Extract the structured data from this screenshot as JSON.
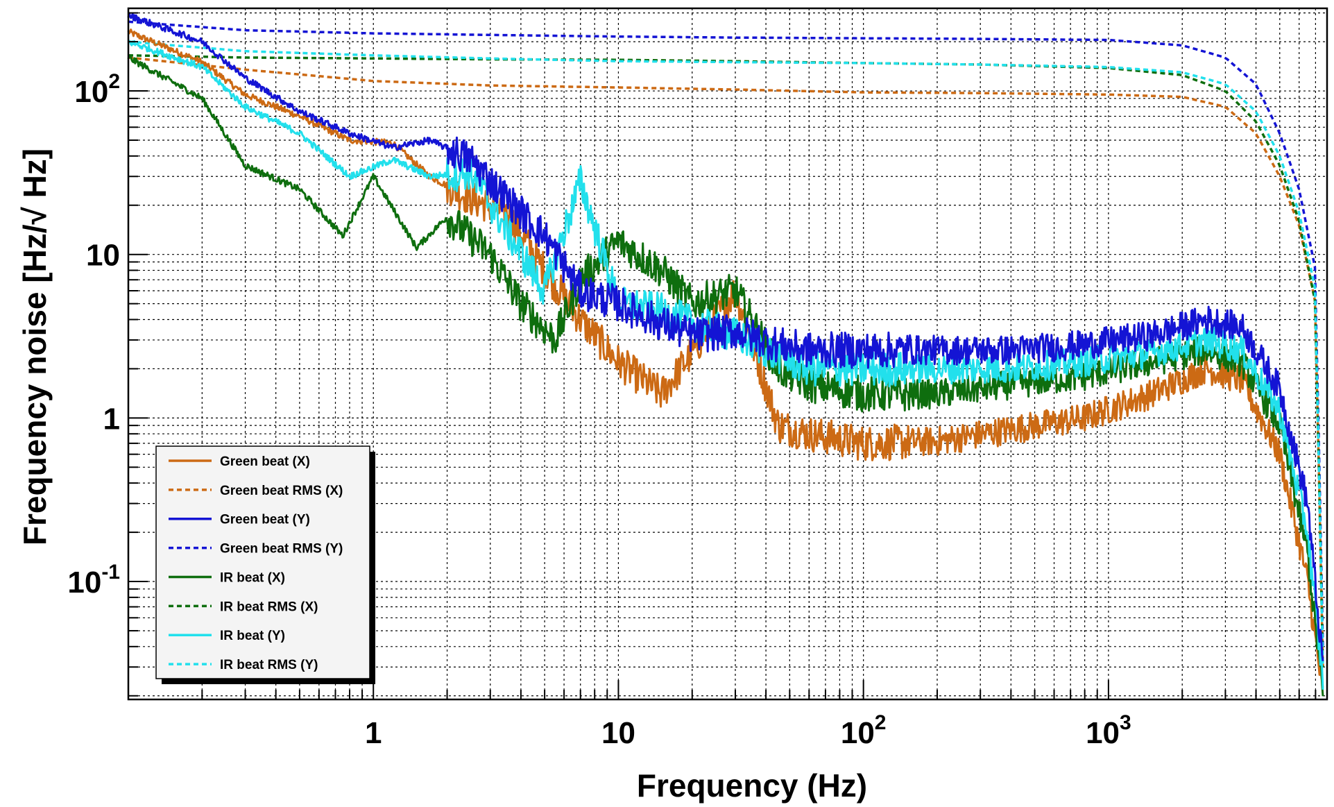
{
  "chart_data": {
    "type": "line",
    "xlabel": "Frequency (Hz)",
    "ylabel": "Frequency noise [Hz/√ Hz]",
    "xscale": "log",
    "yscale": "log",
    "xlim": [
      0.1,
      7800
    ],
    "ylim": [
      0.019,
      320
    ],
    "grid": true,
    "legend_position": "bottom-left",
    "x_ticks": [
      {
        "value": 1,
        "base": "1",
        "exp": ""
      },
      {
        "value": 10,
        "base": "10",
        "exp": ""
      },
      {
        "value": 100,
        "base": "10",
        "exp": "2"
      },
      {
        "value": 1000,
        "base": "10",
        "exp": "3"
      }
    ],
    "y_ticks": [
      {
        "value": 0.1,
        "base": "10",
        "exp": "-1"
      },
      {
        "value": 1,
        "base": "1",
        "exp": ""
      },
      {
        "value": 10,
        "base": "10",
        "exp": ""
      },
      {
        "value": 100,
        "base": "10",
        "exp": "2"
      }
    ],
    "series": [
      {
        "name": "Green beat (X)",
        "color": "#cc6a14",
        "dash": false,
        "x": [
          0.1,
          0.2,
          0.3,
          0.5,
          0.8,
          1.2,
          1.7,
          2.5,
          3.5,
          5,
          7,
          10,
          15,
          20,
          30,
          45,
          60,
          100,
          200,
          400,
          800,
          1500,
          2500,
          3500,
          5000,
          6500,
          7500
        ],
        "y": [
          230,
          150,
          95,
          70,
          50,
          48,
          30,
          22,
          18,
          8,
          4,
          2.2,
          1.4,
          2.5,
          6,
          0.9,
          0.8,
          0.7,
          0.72,
          0.85,
          1.0,
          1.4,
          2.0,
          1.7,
          0.6,
          0.1,
          0.02
        ]
      },
      {
        "name": "Green beat RMS (X)",
        "color": "#cc6a14",
        "dash": true,
        "x": [
          0.1,
          0.3,
          1,
          3,
          10,
          30,
          100,
          300,
          1000,
          2000,
          3000,
          4000,
          5000,
          6000,
          7000,
          7500
        ],
        "y": [
          160,
          135,
          115,
          108,
          105,
          102,
          98,
          97,
          95,
          92,
          80,
          55,
          30,
          15,
          5,
          0.03
        ]
      },
      {
        "name": "Green beat (Y)",
        "color": "#1414d4",
        "dash": false,
        "x": [
          0.1,
          0.2,
          0.3,
          0.5,
          0.8,
          1.2,
          1.7,
          2.5,
          3.5,
          5,
          7,
          10,
          15,
          20,
          30,
          45,
          60,
          100,
          200,
          400,
          800,
          1500,
          2500,
          3500,
          5000,
          6500,
          7500
        ],
        "y": [
          290,
          200,
          120,
          75,
          55,
          45,
          50,
          38,
          22,
          13,
          6,
          5,
          3.8,
          3.2,
          3.4,
          2.8,
          2.6,
          2.6,
          2.6,
          2.6,
          2.8,
          3.2,
          4,
          3.6,
          1.5,
          0.3,
          0.03
        ]
      },
      {
        "name": "Green beat RMS (Y)",
        "color": "#1414d4",
        "dash": true,
        "x": [
          0.1,
          0.3,
          1,
          3,
          10,
          30,
          100,
          300,
          1000,
          2000,
          3000,
          4000,
          5000,
          6000,
          7000,
          7500
        ],
        "y": [
          265,
          235,
          225,
          220,
          215,
          212,
          210,
          208,
          205,
          190,
          160,
          110,
          55,
          25,
          8,
          0.04
        ]
      },
      {
        "name": "IR beat (X)",
        "color": "#0e6e0e",
        "dash": false,
        "x": [
          0.1,
          0.2,
          0.3,
          0.5,
          0.75,
          1.0,
          1.5,
          2.0,
          3.0,
          4.0,
          5.5,
          7,
          10,
          15,
          20,
          30,
          45,
          60,
          100,
          200,
          400,
          800,
          1500,
          2500,
          3500,
          5000,
          6500,
          7500
        ],
        "y": [
          160,
          90,
          35,
          25,
          13,
          30,
          11,
          17,
          10,
          5,
          3,
          7,
          12,
          8,
          5,
          6,
          2,
          1.6,
          1.4,
          1.4,
          1.6,
          1.8,
          2.2,
          2.6,
          2.2,
          0.9,
          0.15,
          0.02
        ]
      },
      {
        "name": "IR beat RMS (X)",
        "color": "#0e6e0e",
        "dash": true,
        "x": [
          0.1,
          0.3,
          1,
          3,
          10,
          30,
          100,
          300,
          1000,
          2000,
          3000,
          4000,
          5000,
          6000,
          7000,
          7500
        ],
        "y": [
          165,
          160,
          158,
          156,
          155,
          152,
          148,
          145,
          138,
          125,
          100,
          65,
          35,
          16,
          5,
          0.03
        ]
      },
      {
        "name": "IR beat (Y)",
        "color": "#22e0ec",
        "dash": false,
        "x": [
          0.1,
          0.2,
          0.3,
          0.5,
          0.8,
          1.2,
          1.7,
          2.5,
          3.5,
          5,
          7,
          10,
          15,
          20,
          30,
          45,
          60,
          100,
          200,
          400,
          800,
          1500,
          2500,
          3500,
          5000,
          6500,
          7500
        ],
        "y": [
          200,
          140,
          80,
          55,
          30,
          38,
          30,
          32,
          14,
          6,
          28,
          5,
          4.5,
          3.8,
          3.2,
          2.4,
          2.0,
          2.0,
          2.0,
          2.0,
          2.2,
          2.5,
          3.0,
          2.6,
          1.1,
          0.2,
          0.025
        ]
      },
      {
        "name": "IR beat RMS (Y)",
        "color": "#22e0ec",
        "dash": true,
        "x": [
          0.1,
          0.3,
          1,
          3,
          10,
          30,
          100,
          300,
          1000,
          2000,
          3000,
          4000,
          5000,
          6000,
          7000,
          7500
        ],
        "y": [
          200,
          175,
          165,
          158,
          152,
          150,
          148,
          145,
          140,
          130,
          110,
          75,
          40,
          18,
          6,
          0.03
        ]
      }
    ]
  }
}
